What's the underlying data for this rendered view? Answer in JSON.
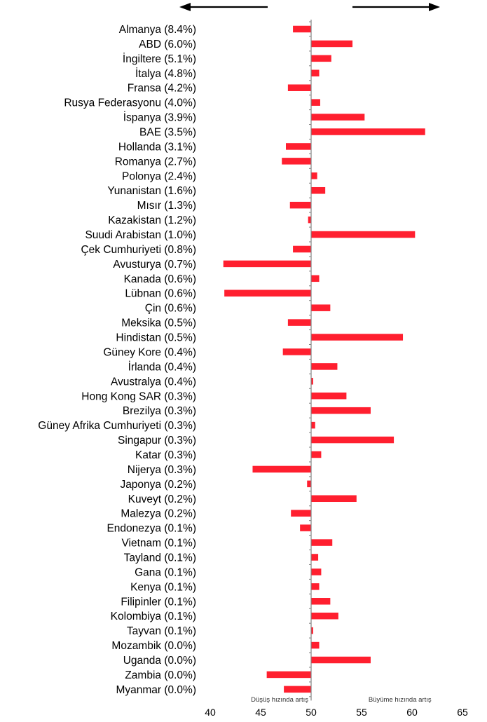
{
  "colors": {
    "bar": "#ff1f2f",
    "axis": "#808080",
    "arrow": "#000000"
  },
  "chart_data": {
    "type": "bar",
    "orientation": "horizontal",
    "baseline": 50,
    "xlim": [
      40,
      65
    ],
    "xticks": [
      "40",
      "45",
      "50",
      "55",
      "60",
      "65"
    ],
    "annotations": {
      "left": "Düşüş hızında artış",
      "right": "Büyüme hızında artış"
    },
    "arrows": [
      "left",
      "right"
    ],
    "grid": false,
    "categories": [
      "Almanya (8.4%)",
      "ABD (6.0%)",
      "İngiltere (5.1%)",
      "İtalya (4.8%)",
      "Fransa (4.2%)",
      "Rusya Federasyonu (4.0%)",
      "İspanya (3.9%)",
      "BAE (3.5%)",
      "Hollanda (3.1%)",
      "Romanya (2.7%)",
      "Polonya (2.4%)",
      "Yunanistan (1.6%)",
      "Mısır (1.3%)",
      "Kazakistan (1.2%)",
      "Suudi Arabistan (1.0%)",
      "Çek Cumhuriyeti (0.8%)",
      "Avusturya (0.7%)",
      "Kanada (0.6%)",
      "Lübnan (0.6%)",
      "Çin (0.6%)",
      "Meksika (0.5%)",
      "Hindistan (0.5%)",
      "Güney Kore (0.4%)",
      "İrlanda (0.4%)",
      "Avustralya (0.4%)",
      "Hong Kong SAR (0.3%)",
      "Brezilya (0.3%)",
      "Güney Afrika Cumhuriyeti (0.3%)",
      "Singapur (0.3%)",
      "Katar (0.3%)",
      "Nijerya (0.3%)",
      "Japonya (0.2%)",
      "Kuveyt (0.2%)",
      "Malezya (0.2%)",
      "Endonezya (0.1%)",
      "Vietnam (0.1%)",
      "Tayland (0.1%)",
      "Gana (0.1%)",
      "Kenya (0.1%)",
      "Filipinler (0.1%)",
      "Kolombiya (0.1%)",
      "Tayvan (0.1%)",
      "Mozambik (0.0%)",
      "Uganda (0.0%)",
      "Zambia (0.0%)",
      "Myanmar (0.0%)"
    ],
    "values": [
      48.2,
      54.1,
      52.0,
      50.8,
      47.7,
      50.9,
      55.3,
      61.3,
      47.5,
      47.1,
      50.6,
      51.4,
      47.9,
      49.7,
      60.3,
      48.2,
      41.3,
      50.8,
      41.4,
      51.9,
      47.7,
      59.1,
      47.2,
      52.6,
      50.2,
      53.5,
      55.9,
      50.4,
      58.2,
      51.0,
      44.2,
      49.6,
      54.5,
      48.0,
      48.9,
      52.1,
      50.7,
      51.0,
      50.8,
      51.9,
      52.7,
      50.2,
      50.8,
      55.9,
      45.6,
      47.3
    ]
  }
}
